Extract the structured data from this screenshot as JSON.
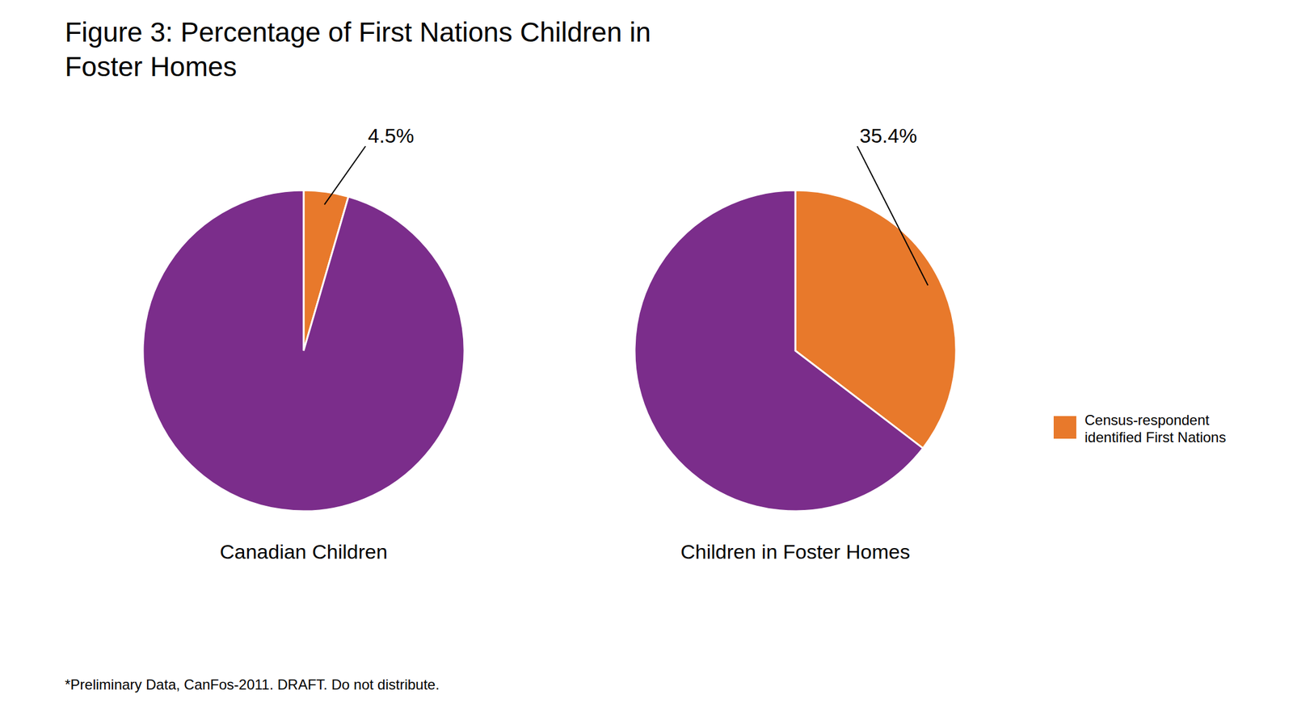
{
  "chart_data": {
    "type": "pie",
    "title": "Figure 3: Percentage of First Nations Children in\nFoster Homes",
    "categories": [
      "Census-respondent\nidentified First Nations",
      null
    ],
    "colors": [
      "#E8792B",
      "#7B2D8B"
    ],
    "data_labels": true,
    "legend": "right",
    "series": [
      {
        "name": "Canadian Children",
        "values": [
          4.5,
          95.5
        ],
        "value_labels": [
          "4.5%",
          null
        ]
      },
      {
        "name": "Children in Foster Homes",
        "values": [
          35.4,
          64.6
        ],
        "value_labels": [
          "35.4%",
          null
        ]
      }
    ],
    "annotations": [
      "*Preliminary Data, CanFos-2011. DRAFT. Do not distribute."
    ]
  }
}
